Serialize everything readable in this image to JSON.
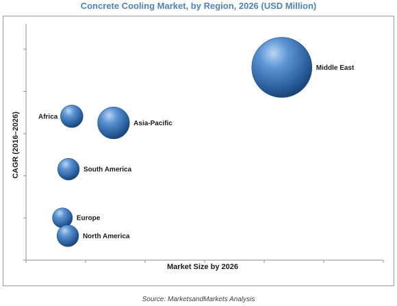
{
  "chart_data": {
    "type": "scatter",
    "title": "Concrete Cooling Market, by Region, 2026 (USD Million)",
    "xlabel": "Market Size by 2026",
    "ylabel": "CAGR (2016–2026)",
    "source": "Source: MarketsandMarkets Analysis",
    "xlim": [
      0,
      100
    ],
    "ylim": [
      0,
      100
    ],
    "grid": false,
    "legend": "none",
    "bubble_color": "#2e6bb0",
    "points": [
      {
        "name": "Middle East",
        "x": 71.6,
        "y": 81.6,
        "size": 100
      },
      {
        "name": "Africa",
        "x": 12.8,
        "y": 60.9,
        "size": 14
      },
      {
        "name": "Asia-Pacific",
        "x": 24.5,
        "y": 58.1,
        "size": 28
      },
      {
        "name": "South America",
        "x": 11.9,
        "y": 38.5,
        "size": 13
      },
      {
        "name": "Europe",
        "x": 10.2,
        "y": 17.9,
        "size": 11
      },
      {
        "name": "North America",
        "x": 11.7,
        "y": 10.3,
        "size": 13
      }
    ]
  }
}
